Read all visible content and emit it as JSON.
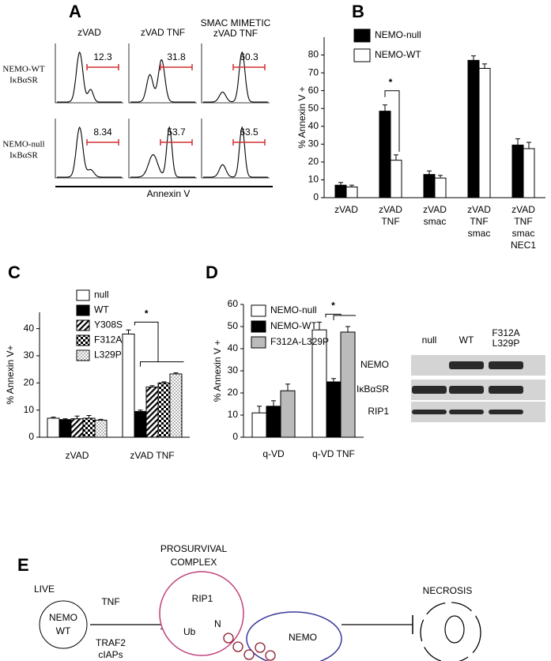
{
  "panel_a": {
    "label": "A",
    "columns": [
      [
        "zVAD"
      ],
      [
        "zVAD TNF"
      ],
      [
        "SMAC MIMETIC",
        "zVAD TNF"
      ]
    ],
    "rows": [
      [
        "NEMO-WT",
        "IκBαSR"
      ],
      [
        "NEMO-null",
        "IκBαSR"
      ]
    ],
    "gate_values": [
      [
        12.3,
        31.8,
        60.3
      ],
      [
        8.34,
        53.7,
        63.5
      ]
    ],
    "x_label": "Annexin V"
  },
  "chart_data": [
    {
      "panel": "B",
      "type": "bar",
      "ylabel": "% Annexin V +",
      "categories": [
        [
          "zVAD"
        ],
        [
          "zVAD",
          "TNF"
        ],
        [
          "zVAD",
          "smac"
        ],
        [
          "zVAD",
          "TNF",
          "smac"
        ],
        [
          "zVAD",
          "TNF",
          "smac",
          "NEC1"
        ]
      ],
      "series": [
        {
          "name": "NEMO-null",
          "color": "#000000",
          "values": [
            7,
            48.5,
            13,
            77,
            29.5
          ],
          "errors": [
            1.5,
            3.5,
            2,
            2.5,
            3.5
          ]
        },
        {
          "name": "NEMO-WT",
          "color": "#ffffff",
          "values": [
            6,
            21,
            11,
            72.5,
            27.5
          ],
          "errors": [
            1,
            3,
            1.5,
            2.5,
            3.5
          ]
        }
      ],
      "ylim": [
        0,
        90
      ],
      "yticks": [
        0,
        10,
        20,
        30,
        40,
        50,
        60,
        70,
        80
      ],
      "legend": "upper left",
      "annotation": "*"
    },
    {
      "panel": "C",
      "type": "bar",
      "ylabel": "% Annexin V+",
      "categories": [
        "zVAD",
        "zVAD TNF"
      ],
      "series": [
        {
          "name": "null",
          "color": "#ffffff",
          "values": [
            7,
            38
          ],
          "errors": [
            0.4,
            1.5
          ]
        },
        {
          "name": "WT",
          "color": "#000000",
          "values": [
            6.5,
            9.5
          ],
          "errors": [
            0.3,
            0.5
          ]
        },
        {
          "name": "Y308S",
          "color": "#ffffff",
          "pattern": "hatch",
          "values": [
            6.8,
            18.5
          ],
          "errors": [
            1,
            0.5
          ]
        },
        {
          "name": "F312A",
          "color": "#ffffff",
          "pattern": "checker",
          "values": [
            7,
            20
          ],
          "errors": [
            1,
            0.4
          ]
        },
        {
          "name": "L329P",
          "color": "#ffffff",
          "pattern": "dots",
          "values": [
            6.3,
            23.3
          ],
          "errors": [
            0.3,
            0.4
          ]
        }
      ],
      "ylim": [
        0,
        46
      ],
      "yticks": [
        0,
        10,
        20,
        30,
        40
      ],
      "legend": "upper left",
      "annotation": "*"
    },
    {
      "panel": "D",
      "type": "bar",
      "ylabel": "% Annexin V +",
      "categories": [
        "q-VD",
        "q-VD TNF"
      ],
      "series": [
        {
          "name": "NEMO-null",
          "color": "#ffffff",
          "values": [
            11,
            48.5
          ],
          "errors": [
            3,
            3.5
          ]
        },
        {
          "name": "NEMO-WT",
          "color": "#000000",
          "values": [
            14,
            25
          ],
          "errors": [
            2.5,
            1.5
          ]
        },
        {
          "name": "F312A-L329P",
          "color": "#bbbbbb",
          "values": [
            21,
            47.5
          ],
          "errors": [
            3,
            2.5
          ]
        }
      ],
      "ylim": [
        0,
        60
      ],
      "yticks": [
        0,
        10,
        20,
        30,
        40,
        50,
        60
      ],
      "legend": "upper left",
      "annotation": "*"
    }
  ],
  "western_blot": {
    "lanes": [
      [
        "null"
      ],
      [
        "WT"
      ],
      [
        "F312A",
        "L329P"
      ]
    ],
    "rows": [
      "NEMO",
      "IκBαSR",
      "RIP1"
    ]
  },
  "panel_e": {
    "label": "E",
    "live": "LIVE",
    "nemo_wt": [
      "NEMO",
      "WT"
    ],
    "tnf": "TNF",
    "traf": [
      "TRAF2",
      "cIAPs"
    ],
    "complex": [
      "PROSURVIVAL",
      "COMPLEX"
    ],
    "rip1": "RIP1",
    "ub": "Ub",
    "ub_sup": "N",
    "nemo": "NEMO",
    "necrosis": "NECROSIS"
  }
}
